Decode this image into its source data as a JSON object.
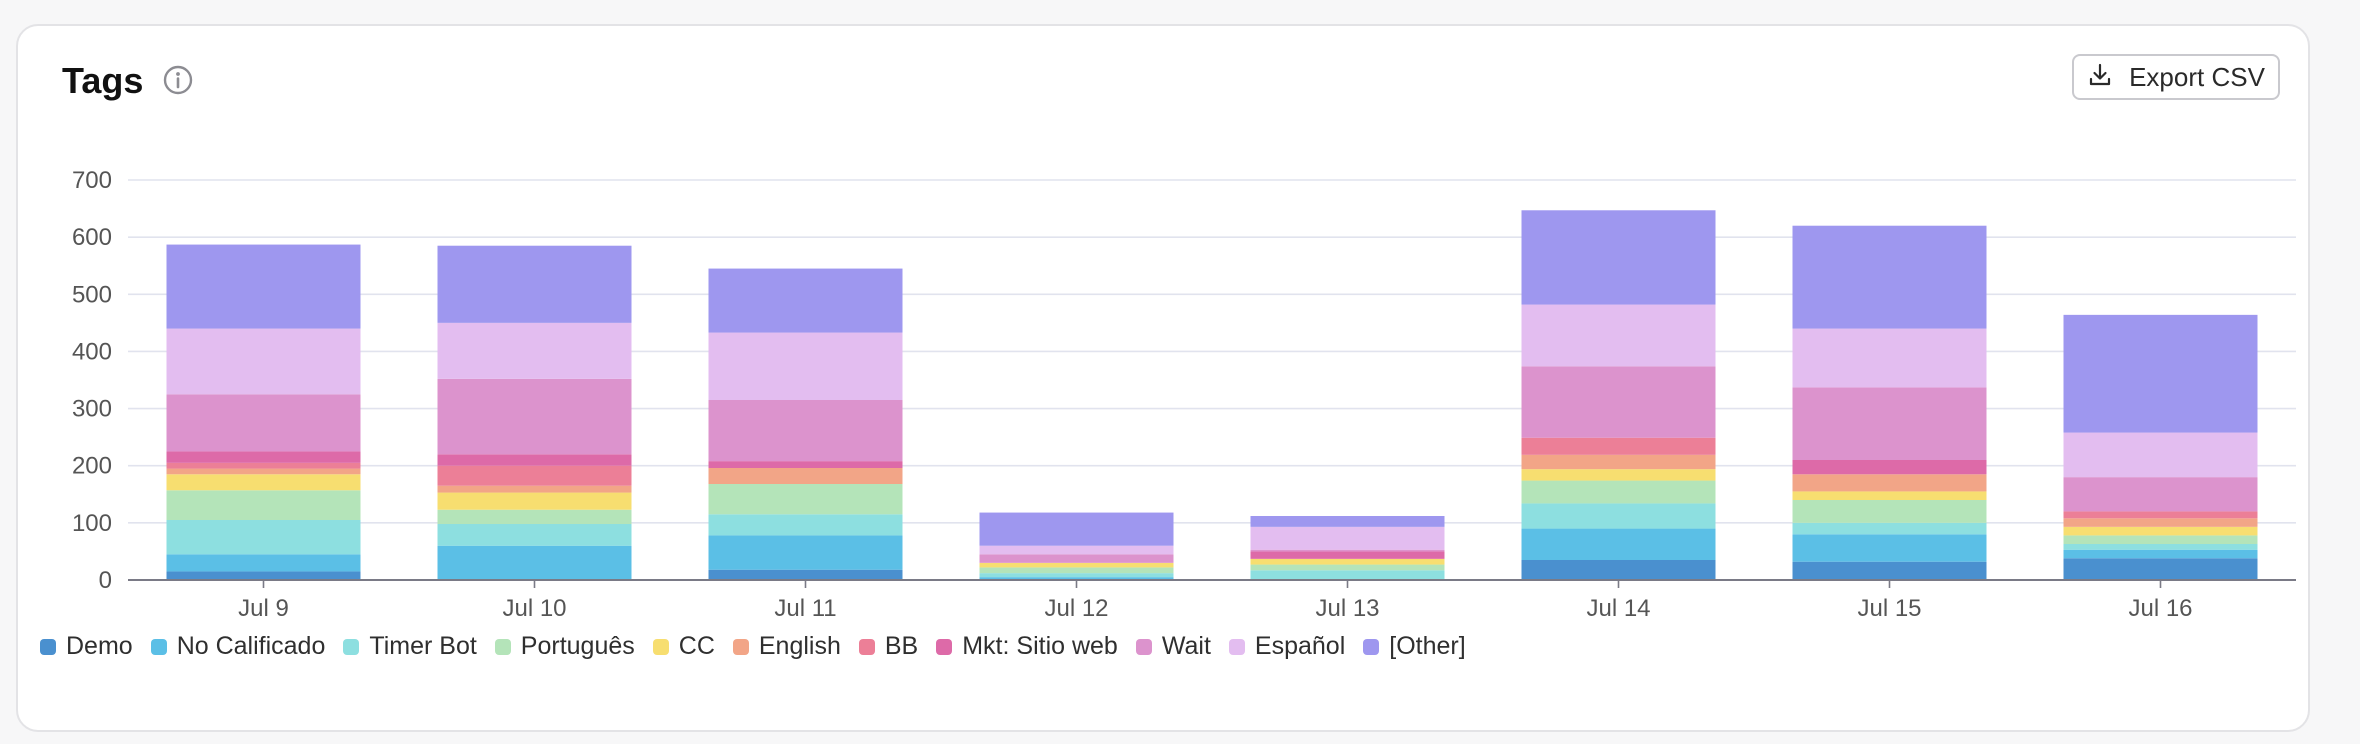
{
  "header": {
    "title": "Tags",
    "export_label": "Export CSV"
  },
  "icons": {
    "info": "info-icon",
    "export": "download-icon"
  },
  "chart_data": {
    "type": "bar",
    "stacked": true,
    "categories": [
      "Jul 9",
      "Jul 10",
      "Jul 11",
      "Jul 12",
      "Jul 13",
      "Jul 14",
      "Jul 15",
      "Jul 16"
    ],
    "ylim": [
      0,
      700
    ],
    "yticks": [
      0,
      100,
      200,
      300,
      400,
      500,
      600,
      700
    ],
    "grid": true,
    "legend_position": "bottom-left",
    "series": [
      {
        "name": "Demo",
        "color": "#4a90cf",
        "values": [
          15,
          0,
          18,
          0,
          0,
          35,
          32,
          38
        ]
      },
      {
        "name": "No Calificado",
        "color": "#5bbfe6",
        "values": [
          30,
          60,
          60,
          5,
          0,
          55,
          48,
          15
        ]
      },
      {
        "name": "Timer Bot",
        "color": "#8ddfe0",
        "values": [
          60,
          38,
          37,
          7,
          17,
          44,
          20,
          10
        ]
      },
      {
        "name": "Português",
        "color": "#b4e4b9",
        "values": [
          52,
          25,
          53,
          10,
          10,
          40,
          40,
          15
        ]
      },
      {
        "name": "CC",
        "color": "#f7de70",
        "values": [
          28,
          30,
          0,
          8,
          10,
          20,
          15,
          15
        ]
      },
      {
        "name": "English",
        "color": "#f2a587",
        "values": [
          10,
          12,
          28,
          0,
          0,
          25,
          30,
          15
        ]
      },
      {
        "name": "BB",
        "color": "#ec7f97",
        "values": [
          10,
          35,
          0,
          0,
          0,
          30,
          0,
          12
        ]
      },
      {
        "name": "Mkt: Sitio web",
        "color": "#dd6aa8",
        "values": [
          20,
          20,
          12,
          0,
          13,
          0,
          25,
          0
        ]
      },
      {
        "name": "Wait",
        "color": "#dc93cd",
        "values": [
          100,
          132,
          107,
          15,
          3,
          125,
          127,
          60
        ]
      },
      {
        "name": "Español",
        "color": "#e3bdf0",
        "values": [
          115,
          98,
          118,
          15,
          40,
          108,
          103,
          78
        ]
      },
      {
        "name": "[Other]",
        "color": "#9e97ef",
        "values": [
          147,
          135,
          112,
          58,
          19,
          165,
          180,
          206
        ]
      }
    ]
  }
}
